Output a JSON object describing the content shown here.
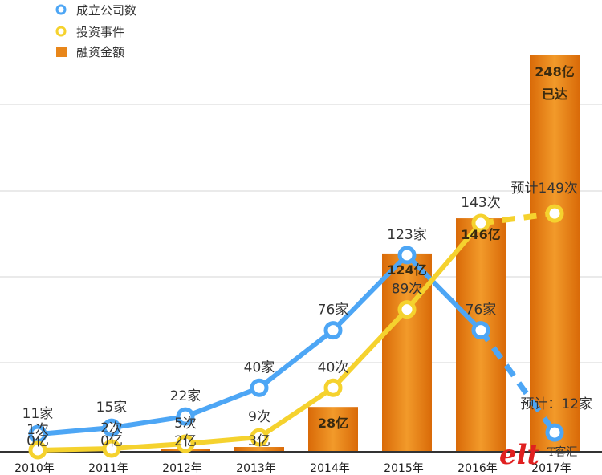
{
  "chart_data": {
    "type": "bar+line",
    "categories": [
      "2010年",
      "2011年",
      "2012年",
      "2013年",
      "2014年",
      "2015年",
      "2016年",
      "2017年"
    ],
    "legend": [
      {
        "name": "成立公司数",
        "marker": "circle",
        "color": "#4da6f5"
      },
      {
        "name": "投资事件",
        "marker": "circle",
        "color": "#f5d22e"
      },
      {
        "name": "融资金额",
        "marker": "square",
        "color": "#e8861a"
      }
    ],
    "series": [
      {
        "name": "成立公司数",
        "type": "line",
        "color": "#4da6f5",
        "values": [
          11,
          15,
          22,
          40,
          76,
          123,
          76,
          12
        ],
        "labels": [
          "11家",
          "15家",
          "22家",
          "40家",
          "76家",
          "123家",
          "76家",
          "预计：12家"
        ],
        "projected_from_index": 6
      },
      {
        "name": "投资事件",
        "type": "line",
        "color": "#f5d22e",
        "values": [
          1,
          2,
          5,
          9,
          40,
          89,
          143,
          149
        ],
        "labels": [
          "1次",
          "2次",
          "5次",
          "9次",
          "40次",
          "89次",
          "143次",
          "预计149次"
        ],
        "projected_from_index": 6
      },
      {
        "name": "融资金额",
        "type": "bar",
        "color": "#e8861a",
        "values": [
          0,
          0,
          2,
          3,
          28,
          124,
          146,
          248
        ],
        "labels": [
          "0亿",
          "0亿",
          "2亿",
          "3亿",
          "28亿",
          "124亿",
          "146亿",
          "248亿"
        ],
        "annotations": [
          {
            "index": 7,
            "text": "已达"
          }
        ]
      }
    ],
    "ylim": [
      0,
      270
    ],
    "grid": true,
    "legend_position": "top-left"
  },
  "watermark": {
    "logo": "elt",
    "text": "T客汇"
  }
}
